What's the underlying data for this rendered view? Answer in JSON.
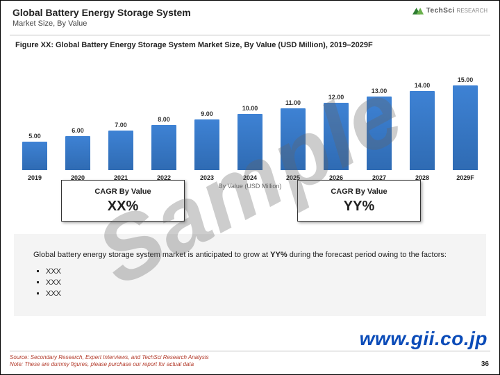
{
  "header": {
    "title": "Global Battery Energy Storage System",
    "subtitle": "Market Size, By Value",
    "logo_text": "TechSci",
    "logo_sub": "RESEARCH"
  },
  "figure": {
    "title": "Figure XX: Global Battery Energy Storage System Market Size, By Value (USD Million), 2019–2029F"
  },
  "chart": {
    "type": "bar",
    "series_name": "By Value (USD Million)",
    "bar_color": "#3e82d4",
    "background_color": "#ffffff",
    "label_fontsize": 9,
    "value_fontsize": 9,
    "ymax": 16,
    "categories": [
      "2019",
      "2020",
      "2021",
      "2022",
      "2023",
      "2024",
      "2025",
      "2026",
      "2027",
      "2028",
      "2029F"
    ],
    "values": [
      5.0,
      6.0,
      7.0,
      8.0,
      9.0,
      10.0,
      11.0,
      12.0,
      13.0,
      14.0,
      15.0
    ],
    "value_labels": [
      "5.00",
      "6.00",
      "7.00",
      "8.00",
      "9.00",
      "10.00",
      "11.00",
      "12.00",
      "13.00",
      "14.00",
      "15.00"
    ]
  },
  "cagr": {
    "left": {
      "title": "CAGR By Value",
      "value": "XX%"
    },
    "right": {
      "title": "CAGR By Value",
      "value": "YY%"
    }
  },
  "textbox": {
    "lead_prefix": "Global battery energy storage system market is anticipated to grow at ",
    "lead_bold": "YY%",
    "lead_suffix": " during the forecast period owing to the factors:",
    "bullets": [
      "XXX",
      "XXX",
      "XXX"
    ]
  },
  "footer": {
    "source_line1": "Source: Secondary Research, Expert Interviews, and TechSci Research Analysis",
    "source_line2": "Note: These are dummy figures, please purchase our report for actual data",
    "page": "36"
  },
  "watermark": "Sample",
  "url_watermark": "www.gii.co.jp"
}
